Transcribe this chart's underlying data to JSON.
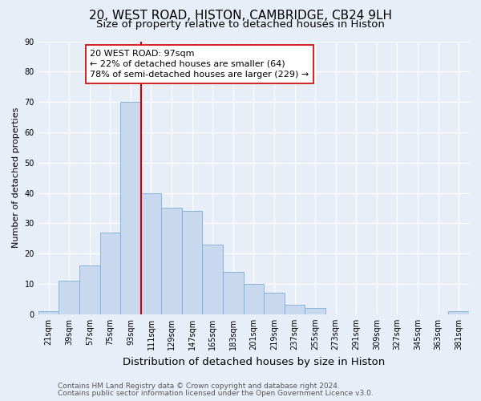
{
  "title": "20, WEST ROAD, HISTON, CAMBRIDGE, CB24 9LH",
  "subtitle": "Size of property relative to detached houses in Histon",
  "xlabel": "Distribution of detached houses by size in Histon",
  "ylabel": "Number of detached properties",
  "bar_labels": [
    "21sqm",
    "39sqm",
    "57sqm",
    "75sqm",
    "93sqm",
    "111sqm",
    "129sqm",
    "147sqm",
    "165sqm",
    "183sqm",
    "201sqm",
    "219sqm",
    "237sqm",
    "255sqm",
    "273sqm",
    "291sqm",
    "309sqm",
    "327sqm",
    "345sqm",
    "363sqm",
    "381sqm"
  ],
  "bar_values": [
    1,
    11,
    16,
    27,
    70,
    40,
    35,
    34,
    23,
    14,
    10,
    7,
    3,
    2,
    0,
    0,
    0,
    0,
    0,
    0,
    1
  ],
  "bar_color": "#c8d8ef",
  "bar_edge_color": "#7aadd4",
  "vline_color": "#cc0000",
  "annotation_line1": "20 WEST ROAD: 97sqm",
  "annotation_line2": "← 22% of detached houses are smaller (64)",
  "annotation_line3": "78% of semi-detached houses are larger (229) →",
  "annotation_box_facecolor": "#ffffff",
  "annotation_box_edgecolor": "#cc0000",
  "ylim": [
    0,
    90
  ],
  "yticks": [
    0,
    10,
    20,
    30,
    40,
    50,
    60,
    70,
    80,
    90
  ],
  "footer_line1": "Contains HM Land Registry data © Crown copyright and database right 2024.",
  "footer_line2": "Contains public sector information licensed under the Open Government Licence v3.0.",
  "background_color": "#e8eef8",
  "grid_color": "#ffffff",
  "title_fontsize": 11,
  "subtitle_fontsize": 9.5,
  "xlabel_fontsize": 9.5,
  "ylabel_fontsize": 8,
  "tick_fontsize": 7,
  "annotation_fontsize": 8,
  "footer_fontsize": 6.5
}
